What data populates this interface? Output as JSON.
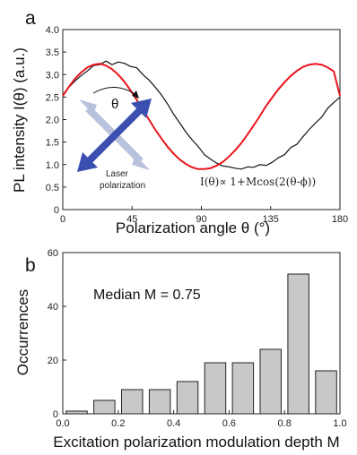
{
  "colors": {
    "fit": "#e8141c",
    "data": "#111111",
    "bar_fill": "#c8c8c8",
    "bar_edge": "#222222",
    "arrow_dark": "#3a4fb0",
    "arrow_light": "#b9c2dc"
  },
  "chart_data": [
    {
      "type": "line",
      "panel_label": "a",
      "xlabel": "Polarization angle θ (°)",
      "ylabel": "PL intensity I(θ) (a.u.)",
      "xlim": [
        0,
        180
      ],
      "ylim": [
        0,
        4.0
      ],
      "x_ticks": [
        "0",
        "45",
        "90",
        "135",
        "180"
      ],
      "y_ticks": [
        "0",
        "0.5",
        "1.0",
        "1.5",
        "2.0",
        "2.5",
        "3.0",
        "3.5",
        "4.0"
      ],
      "grid": false,
      "series": [
        {
          "style": "data",
          "x": [
            0,
            4,
            8,
            12,
            16,
            20,
            24,
            28,
            32,
            36,
            40,
            44,
            48,
            52,
            56,
            60,
            64,
            68,
            72,
            76,
            80,
            84,
            88,
            92,
            96,
            100,
            104,
            108,
            112,
            116,
            120,
            124,
            128,
            132,
            136,
            140,
            144,
            148,
            152,
            156,
            160,
            164,
            168,
            172,
            176,
            180
          ],
          "y": [
            2.55,
            2.72,
            2.86,
            2.98,
            3.08,
            3.2,
            3.22,
            3.3,
            3.22,
            3.28,
            3.25,
            3.18,
            3.15,
            3.0,
            2.88,
            2.72,
            2.55,
            2.35,
            2.12,
            1.92,
            1.72,
            1.55,
            1.4,
            1.22,
            1.12,
            1.03,
            0.97,
            0.95,
            0.92,
            0.9,
            0.95,
            0.94,
            1.0,
            0.98,
            1.05,
            1.15,
            1.22,
            1.38,
            1.45,
            1.62,
            1.78,
            1.92,
            2.05,
            2.25,
            2.38,
            2.5
          ]
        },
        {
          "style": "fit",
          "x": [
            0,
            4,
            8,
            12,
            16,
            20,
            24,
            28,
            32,
            36,
            40,
            44,
            48,
            52,
            56,
            60,
            64,
            68,
            72,
            76,
            80,
            84,
            88,
            92,
            96,
            100,
            104,
            108,
            112,
            116,
            120,
            124,
            128,
            132,
            136,
            140,
            144,
            148,
            152,
            156,
            160,
            164,
            168,
            172,
            176,
            180
          ],
          "y": [
            2.53,
            2.73,
            2.91,
            3.05,
            3.16,
            3.22,
            3.24,
            3.2,
            3.12,
            3.0,
            2.84,
            2.65,
            2.44,
            2.22,
            2.0,
            1.78,
            1.58,
            1.4,
            1.24,
            1.11,
            1.01,
            0.94,
            0.9,
            0.9,
            0.92,
            0.98,
            1.06,
            1.18,
            1.32,
            1.48,
            1.67,
            1.87,
            2.08,
            2.3,
            2.49,
            2.67,
            2.83,
            2.97,
            3.08,
            3.17,
            3.22,
            3.24,
            3.22,
            3.16,
            3.07,
            2.53
          ]
        }
      ],
      "inset": {
        "theta_symbol": "θ",
        "label_line1": "Laser",
        "label_line2": "polarization",
        "equation": "I(θ)∝ 1+Mcos(2(θ-ϕ))"
      }
    },
    {
      "type": "bar",
      "panel_label": "b",
      "xlabel": "Excitation polarization modulation depth M",
      "ylabel": "Occurrences",
      "xlim": [
        0,
        1.0
      ],
      "ylim": [
        0,
        60
      ],
      "x_ticks": [
        "0.0",
        "0.2",
        "0.4",
        "0.6",
        "0.8",
        "1.0"
      ],
      "y_ticks": [
        "0",
        "20",
        "40",
        "60"
      ],
      "grid": false,
      "bin_width": 0.1,
      "bin_starts": [
        0.0,
        0.1,
        0.2,
        0.3,
        0.4,
        0.5,
        0.6,
        0.7,
        0.8,
        0.9
      ],
      "values": [
        1,
        5,
        9,
        9,
        12,
        19,
        19,
        24,
        52,
        16
      ],
      "annotation": "Median M = 0.75"
    }
  ]
}
